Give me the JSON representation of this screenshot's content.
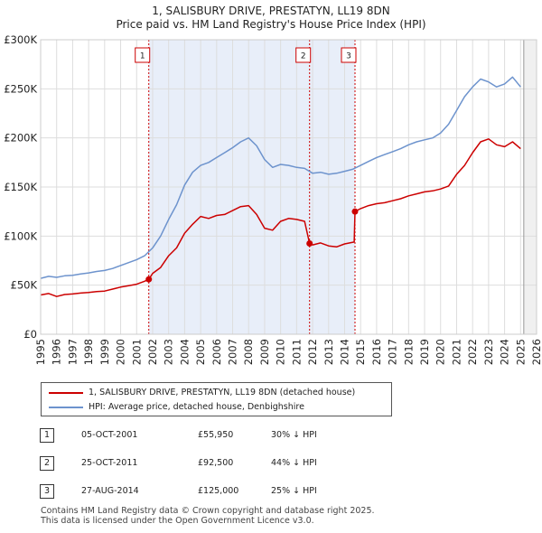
{
  "chart_data": {
    "type": "line",
    "title": "1, SALISBURY DRIVE, PRESTATYN, LL19 8DN",
    "subtitle": "Price paid vs. HM Land Registry's House Price Index (HPI)",
    "xlim": [
      1995,
      2026
    ],
    "ylim": [
      0,
      300000
    ],
    "y_ticks": [
      0,
      50000,
      100000,
      150000,
      200000,
      250000,
      300000
    ],
    "y_tick_labels": [
      "£0",
      "£50K",
      "£100K",
      "£150K",
      "£200K",
      "£250K",
      "£300K"
    ],
    "x_ticks": [
      1995,
      1996,
      1997,
      1998,
      1999,
      2000,
      2001,
      2002,
      2003,
      2004,
      2005,
      2006,
      2007,
      2008,
      2009,
      2010,
      2011,
      2012,
      2013,
      2014,
      2015,
      2016,
      2017,
      2018,
      2019,
      2020,
      2021,
      2022,
      2023,
      2024,
      2025,
      2026
    ],
    "grid": true,
    "shaded_region": [
      2001.76,
      2014.65
    ],
    "forecast_start": 2025.2,
    "series": [
      {
        "name": "1, SALISBURY DRIVE, PRESTATYN, LL19 8DN (detached house)",
        "color": "#cc0000",
        "x": [
          1995,
          1995.5,
          1996,
          1996.5,
          1997,
          1997.5,
          1998,
          1998.5,
          1999,
          1999.5,
          2000,
          2000.5,
          2001,
          2001.5,
          2001.76,
          2002,
          2002.5,
          2003,
          2003.5,
          2004,
          2004.5,
          2005,
          2005.5,
          2006,
          2006.5,
          2007,
          2007.5,
          2008,
          2008.5,
          2009,
          2009.5,
          2010,
          2010.5,
          2011,
          2011.5,
          2011.81,
          2012,
          2012.5,
          2013,
          2013.5,
          2014,
          2014.6,
          2014.65,
          2015,
          2015.5,
          2016,
          2016.5,
          2017,
          2017.5,
          2018,
          2018.5,
          2019,
          2019.5,
          2020,
          2020.5,
          2021,
          2021.5,
          2022,
          2022.5,
          2023,
          2023.5,
          2024,
          2024.5,
          2025
        ],
        "values": [
          40000,
          41500,
          38500,
          40500,
          41000,
          42000,
          42500,
          43500,
          44000,
          46000,
          48000,
          49500,
          51000,
          54000,
          55950,
          62000,
          68000,
          80000,
          88000,
          103000,
          112000,
          120000,
          118000,
          121000,
          122000,
          126000,
          130000,
          131000,
          122000,
          108000,
          106000,
          115000,
          118000,
          117000,
          115000,
          92500,
          91000,
          93000,
          90000,
          89000,
          92000,
          94000,
          125000,
          128000,
          131000,
          133000,
          134000,
          136000,
          138000,
          141000,
          143000,
          145000,
          146000,
          148000,
          151000,
          163000,
          172000,
          185000,
          196000,
          199000,
          193000,
          191000,
          196000,
          189000
        ]
      },
      {
        "name": "HPI: Average price, detached house, Denbighshire",
        "color": "#6d93cd",
        "x": [
          1995,
          1995.5,
          1996,
          1996.5,
          1997,
          1997.5,
          1998,
          1998.5,
          1999,
          1999.5,
          2000,
          2000.5,
          2001,
          2001.5,
          2002,
          2002.5,
          2003,
          2003.5,
          2004,
          2004.5,
          2005,
          2005.5,
          2006,
          2006.5,
          2007,
          2007.5,
          2008,
          2008.5,
          2009,
          2009.5,
          2010,
          2010.5,
          2011,
          2011.5,
          2012,
          2012.5,
          2013,
          2013.5,
          2014,
          2014.5,
          2015,
          2015.5,
          2016,
          2016.5,
          2017,
          2017.5,
          2018,
          2018.5,
          2019,
          2019.5,
          2020,
          2020.5,
          2021,
          2021.5,
          2022,
          2022.5,
          2023,
          2023.5,
          2024,
          2024.5,
          2025
        ],
        "values": [
          57000,
          59000,
          58000,
          59500,
          60000,
          61500,
          62500,
          64000,
          65000,
          67000,
          70000,
          73000,
          76000,
          80000,
          88000,
          100000,
          117000,
          132000,
          152000,
          165000,
          172000,
          175000,
          180000,
          185000,
          190000,
          196000,
          200000,
          192000,
          178000,
          170000,
          173000,
          172000,
          170000,
          169000,
          164000,
          165000,
          163000,
          164000,
          166000,
          168000,
          172000,
          176000,
          180000,
          183000,
          186000,
          189000,
          193000,
          196000,
          198000,
          200000,
          205000,
          214000,
          228000,
          242000,
          252000,
          260000,
          257000,
          252000,
          255000,
          262000,
          252000
        ]
      }
    ],
    "sales": [
      {
        "id": "1",
        "x": 2001.76,
        "y": 55950
      },
      {
        "id": "2",
        "x": 2011.81,
        "y": 92500
      },
      {
        "id": "3",
        "x": 2014.65,
        "y": 125000
      }
    ]
  },
  "legend": [
    {
      "label": "1, SALISBURY DRIVE, PRESTATYN, LL19 8DN (detached house)",
      "color": "#cc0000"
    },
    {
      "label": "HPI: Average price, detached house, Denbighshire",
      "color": "#6d93cd"
    }
  ],
  "transactions": [
    {
      "num": "1",
      "date": "05-OCT-2001",
      "price": "£55,950",
      "hpi": "30% ↓ HPI"
    },
    {
      "num": "2",
      "date": "25-OCT-2011",
      "price": "£92,500",
      "hpi": "44% ↓ HPI"
    },
    {
      "num": "3",
      "date": "27-AUG-2014",
      "price": "£125,000",
      "hpi": "25% ↓ HPI"
    }
  ],
  "footer": {
    "line1": "Contains HM Land Registry data © Crown copyright and database right 2025.",
    "line2": "This data is licensed under the Open Government Licence v3.0."
  }
}
